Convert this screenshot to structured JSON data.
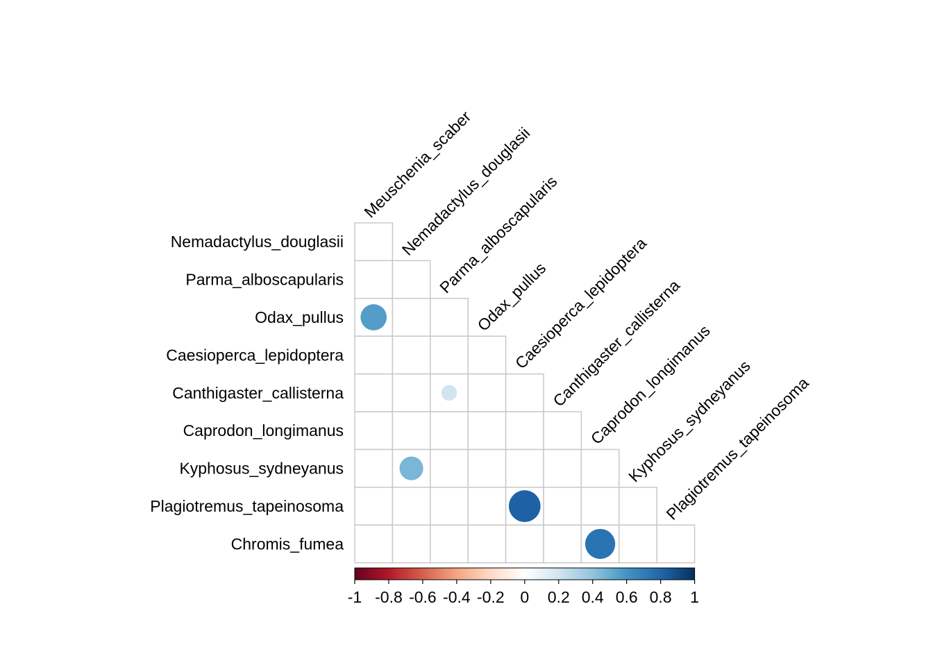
{
  "chart_data": {
    "type": "heatmap",
    "subtype": "correlation-lower-triangle-circles",
    "column_labels": [
      "Meuschenia_scaber",
      "Nemadactylus_douglasii",
      "Parma_alboscapularis",
      "Odax_pullus",
      "Caesioperca_lepidoptera",
      "Canthigaster_callisterna",
      "Caprodon_longimanus",
      "Kyphosus_sydneyanus",
      "Plagiotremus_tapeinosoma"
    ],
    "row_labels": [
      "Nemadactylus_douglasii",
      "Parma_alboscapularis",
      "Odax_pullus",
      "Caesioperca_lepidoptera",
      "Canthigaster_callisterna",
      "Caprodon_longimanus",
      "Kyphosus_sydneyanus",
      "Plagiotremus_tapeinosoma",
      "Chromis_fumea"
    ],
    "cells": [
      {
        "row": "Odax_pullus",
        "col": "Meuschenia_scaber",
        "value": 0.56
      },
      {
        "row": "Canthigaster_callisterna",
        "col": "Parma_alboscapularis",
        "value": 0.2
      },
      {
        "row": "Kyphosus_sydneyanus",
        "col": "Nemadactylus_douglasii",
        "value": 0.46
      },
      {
        "row": "Plagiotremus_tapeinosoma",
        "col": "Caesioperca_lepidoptera",
        "value": 0.82
      },
      {
        "row": "Chromis_fumea",
        "col": "Caprodon_longimanus",
        "value": 0.74
      }
    ],
    "colorbar": {
      "range": [
        -1,
        1
      ],
      "tick_labels": [
        "-1",
        "-0.8",
        "-0.6",
        "-0.4",
        "-0.2",
        "0",
        "0.2",
        "0.4",
        "0.6",
        "0.8",
        "1"
      ],
      "tick_values": [
        -1,
        -0.8,
        -0.6,
        -0.4,
        -0.2,
        0,
        0.2,
        0.4,
        0.6,
        0.8,
        1
      ],
      "colors": [
        "#67001F",
        "#B2182B",
        "#D6604D",
        "#F4A582",
        "#FDDBC7",
        "#FFFFFF",
        "#D1E5F0",
        "#92C5DE",
        "#4393C3",
        "#2166AC",
        "#053061"
      ]
    },
    "grid_color": "#C8C8C8"
  }
}
